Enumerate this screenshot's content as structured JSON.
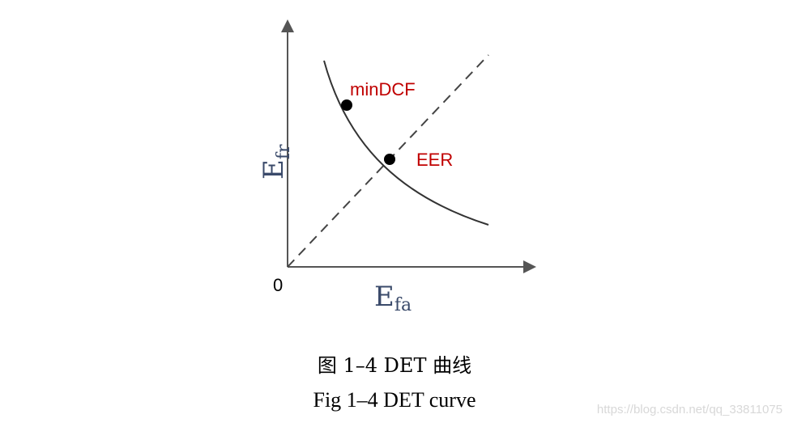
{
  "diagram": {
    "origin_label": "0",
    "y_axis": {
      "main": "E",
      "sub": "fr"
    },
    "x_axis": {
      "main": "E",
      "sub": "fa"
    },
    "points": [
      {
        "label": "minDCF"
      },
      {
        "label": "EER"
      }
    ]
  },
  "caption": {
    "chinese": "图 1–4 DET 曲线",
    "english": "Fig 1–4 DET curve"
  },
  "watermark": "https://blog.csdn.net/qq_33811075",
  "colors": {
    "axis": "#555555",
    "curve": "#333333",
    "label_red": "#c00000",
    "axis_text": "#3a4a6a"
  }
}
